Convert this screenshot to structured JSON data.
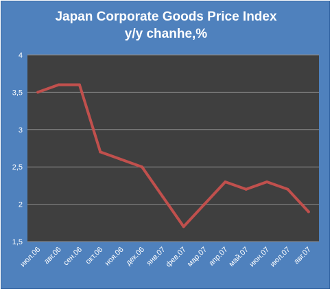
{
  "chart_data": {
    "type": "line",
    "title": "Japan Corporate Goods  Price Index",
    "subtitle": "y/y chanhe,%",
    "categories": [
      "июл.06",
      "авг.06",
      "сен.06",
      "окт.06",
      "ноя.06",
      "дек.06",
      "янв.07",
      "фев.07",
      "мар.07",
      "апр.07",
      "май.07",
      "июн.07",
      "июл.07",
      "авг.07"
    ],
    "series": [
      {
        "values": [
          3.5,
          3.6,
          3.6,
          2.7,
          2.6,
          2.5,
          2.1,
          1.7,
          2.0,
          2.3,
          2.2,
          2.3,
          2.2,
          1.9
        ]
      }
    ],
    "ylim": [
      1.5,
      4
    ],
    "yticks": [
      "1,5",
      "2",
      "2,5",
      "3",
      "3,5",
      "4"
    ],
    "ytick_values": [
      1.5,
      2,
      2.5,
      3,
      3.5,
      4
    ],
    "grid": true,
    "legend": "none",
    "colors": {
      "frame": "#4f81bd",
      "plot_area": "#3f3f3f",
      "gridline": "#8c8c8c",
      "line": "#c0504d",
      "text": "#ffffff"
    }
  }
}
